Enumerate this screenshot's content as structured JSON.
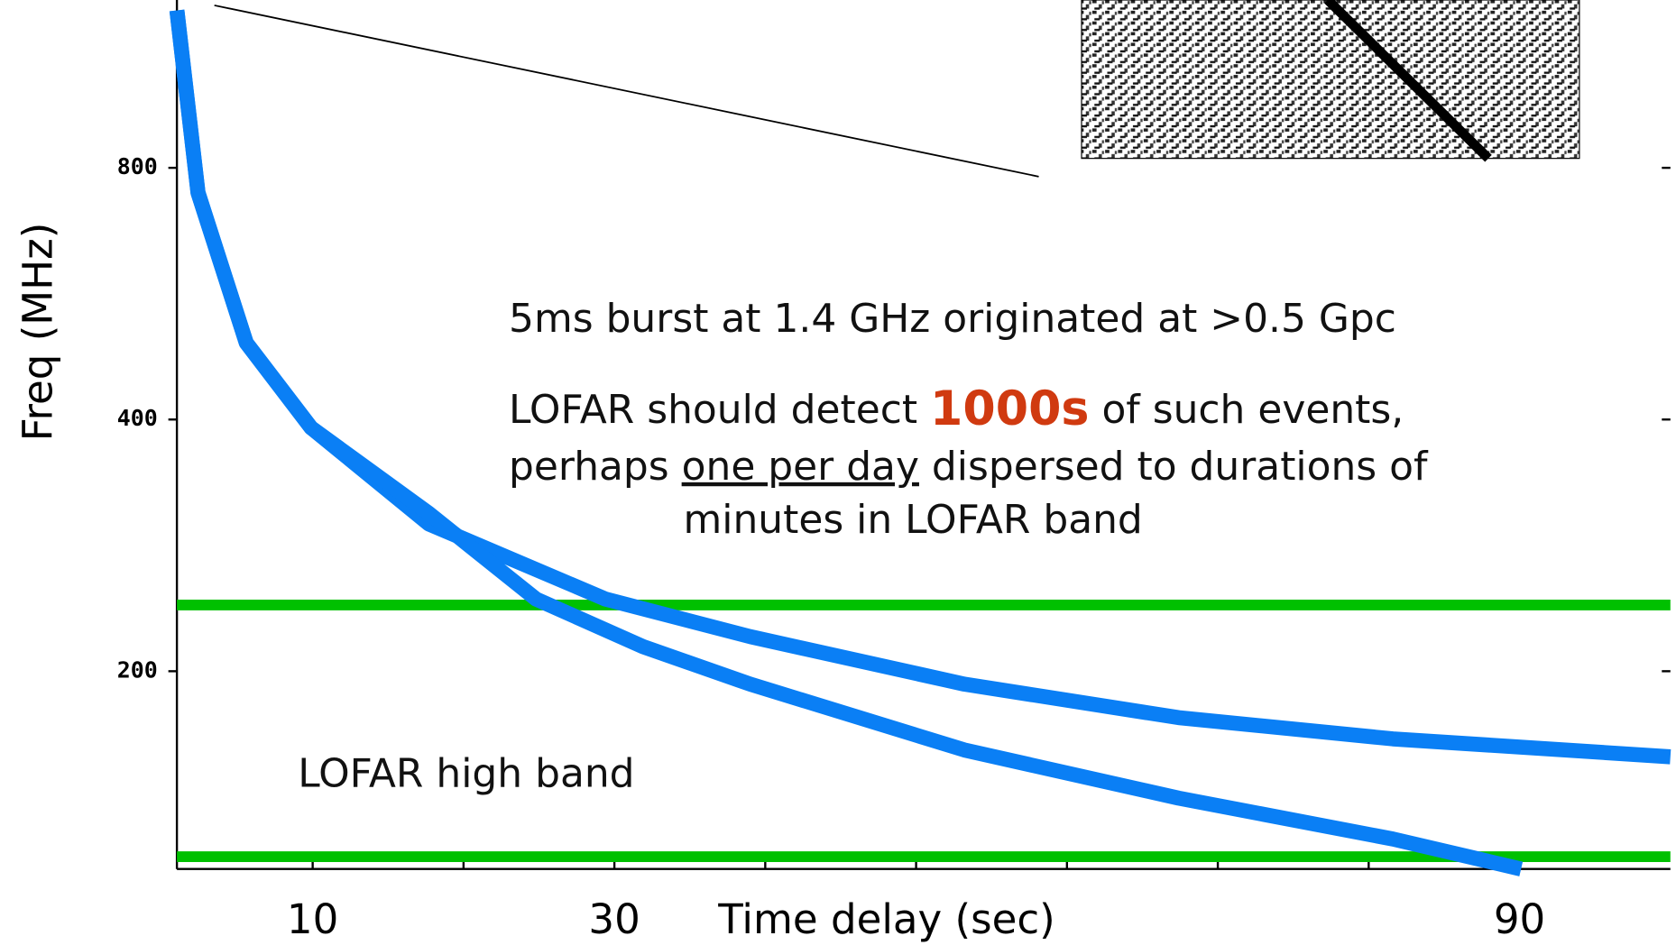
{
  "chart_data": {
    "type": "line",
    "log_y": true,
    "xlabel": "Time delay (sec)",
    "ylabel": "Freq (MHz)",
    "xlim": [
      1,
      100
    ],
    "xticks": [
      10,
      30,
      90
    ],
    "xminor": [
      20,
      40,
      50,
      60,
      70,
      80
    ],
    "ylim": [
      116,
      1270
    ],
    "yticks": [
      200,
      400,
      800
    ],
    "series": [
      {
        "color": "#0a7ff5",
        "x": [
          1,
          2.4,
          5.6,
          9.9,
          17.7,
          29.4,
          39,
          53.2,
          67.4,
          81.6,
          100
        ],
        "values": [
          1234,
          747,
          494,
          391,
          300,
          244,
          220,
          193,
          176,
          166,
          158
        ]
      },
      {
        "color": "#0a7ff5",
        "x": [
          1,
          2.4,
          5.6,
          9.9,
          17.7,
          24.8,
          31.9,
          39,
          53.2,
          67.4,
          81.6,
          90.1
        ],
        "values": [
          1234,
          747,
          494,
          391,
          309,
          244,
          214,
          193,
          161,
          141,
          126,
          116
        ]
      }
    ],
    "hlines": [
      {
        "value": 240,
        "color": "#00c000"
      },
      {
        "value": 120,
        "color": "#00c000"
      }
    ],
    "band_label": "LOFAR high band",
    "annotations": [
      [
        "5ms burst at 1.4 GHz originated at >0.5 Gpc"
      ],
      [
        "LOFAR should detect ",
        "1000s",
        " of such events,"
      ],
      [
        "perhaps ",
        "one per day",
        " dispersed to durations of"
      ],
      [
        "minutes in LOFAR band"
      ]
    ]
  }
}
